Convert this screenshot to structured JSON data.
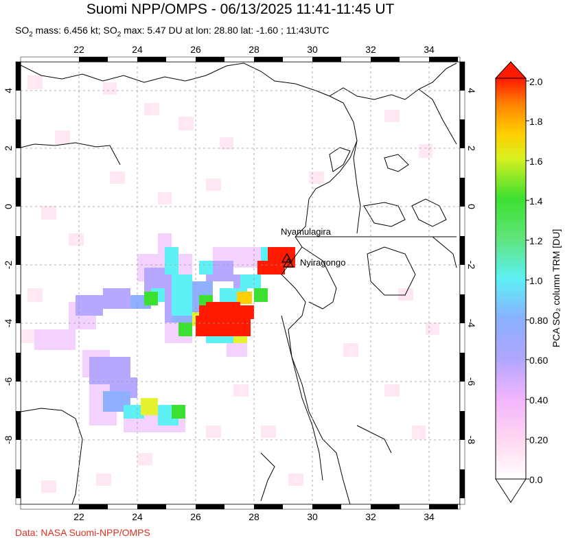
{
  "header": {
    "title": "Suomi NPP/OMPS - 06/13/2025 11:41-11:45 UT",
    "subtitle_mass_prefix": "SO",
    "subtitle_mass_sub": "2",
    "subtitle_mass_value": " mass: 6.456 kt; SO",
    "subtitle_max_sub": "2",
    "subtitle_max_value": " max: 5.47 DU at lon: 28.80 lat: -1.60 ; 11:43UTC"
  },
  "map": {
    "lon_ticks": [
      "22",
      "24",
      "26",
      "28",
      "30",
      "32",
      "34"
    ],
    "lat_ticks": [
      "4",
      "2",
      "0",
      "-2",
      "-4",
      "-6",
      "-8"
    ],
    "volcanoes": [
      {
        "name": "Nyamulagira",
        "lon": 29.2,
        "lat": -1.4
      },
      {
        "name": "Nyiragongo",
        "lon": 29.25,
        "lat": -1.52
      }
    ],
    "colors": {
      "high": "#ff1a00",
      "mid": "#5fe9ff",
      "low": "#b9a9ff"
    }
  },
  "colorbar": {
    "label": "PCA SO₂ column TRM [DU]",
    "ticks": [
      "2.0",
      "1.8",
      "1.6",
      "1.4",
      "1.2",
      "1.0",
      "0.80",
      "0.60",
      "0.40",
      "0.20",
      "0.0"
    ],
    "min": 0.0,
    "max": 2.0
  },
  "footer": {
    "credit": "Data: NASA Suomi-NPP/OMPS"
  }
}
